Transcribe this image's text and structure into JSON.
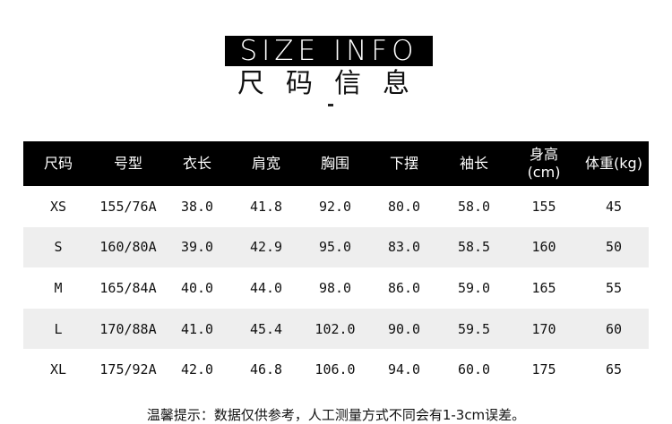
{
  "title_en": "SIZE INFO",
  "title_cn": "尺码信息",
  "headers": [
    "尺码",
    "号型",
    "衣长",
    "肩宽",
    "胸围",
    "下摆",
    "袖长",
    "身高\n(cm)",
    "体重(kg)"
  ],
  "rows": [
    [
      "XS",
      "155/76A",
      "38.0",
      "41.8",
      "92.0",
      "80.0",
      "58.0",
      "155",
      "45"
    ],
    [
      "S",
      "160/80A",
      "39.0",
      "42.9",
      "95.0",
      "83.0",
      "58.5",
      "160",
      "50"
    ],
    [
      "M",
      "165/84A",
      "40.0",
      "44.0",
      "98.0",
      "86.0",
      "59.0",
      "165",
      "55"
    ],
    [
      "L",
      "170/88A",
      "41.0",
      "45.4",
      "102.0",
      "90.0",
      "59.5",
      "170",
      "60"
    ],
    [
      "XL",
      "175/92A",
      "42.0",
      "46.8",
      "106.0",
      "94.0",
      "60.0",
      "175",
      "65"
    ]
  ],
  "note": "温馨提示：数据仅供参考，人工测量方式不同会有1-3cm误差。"
}
